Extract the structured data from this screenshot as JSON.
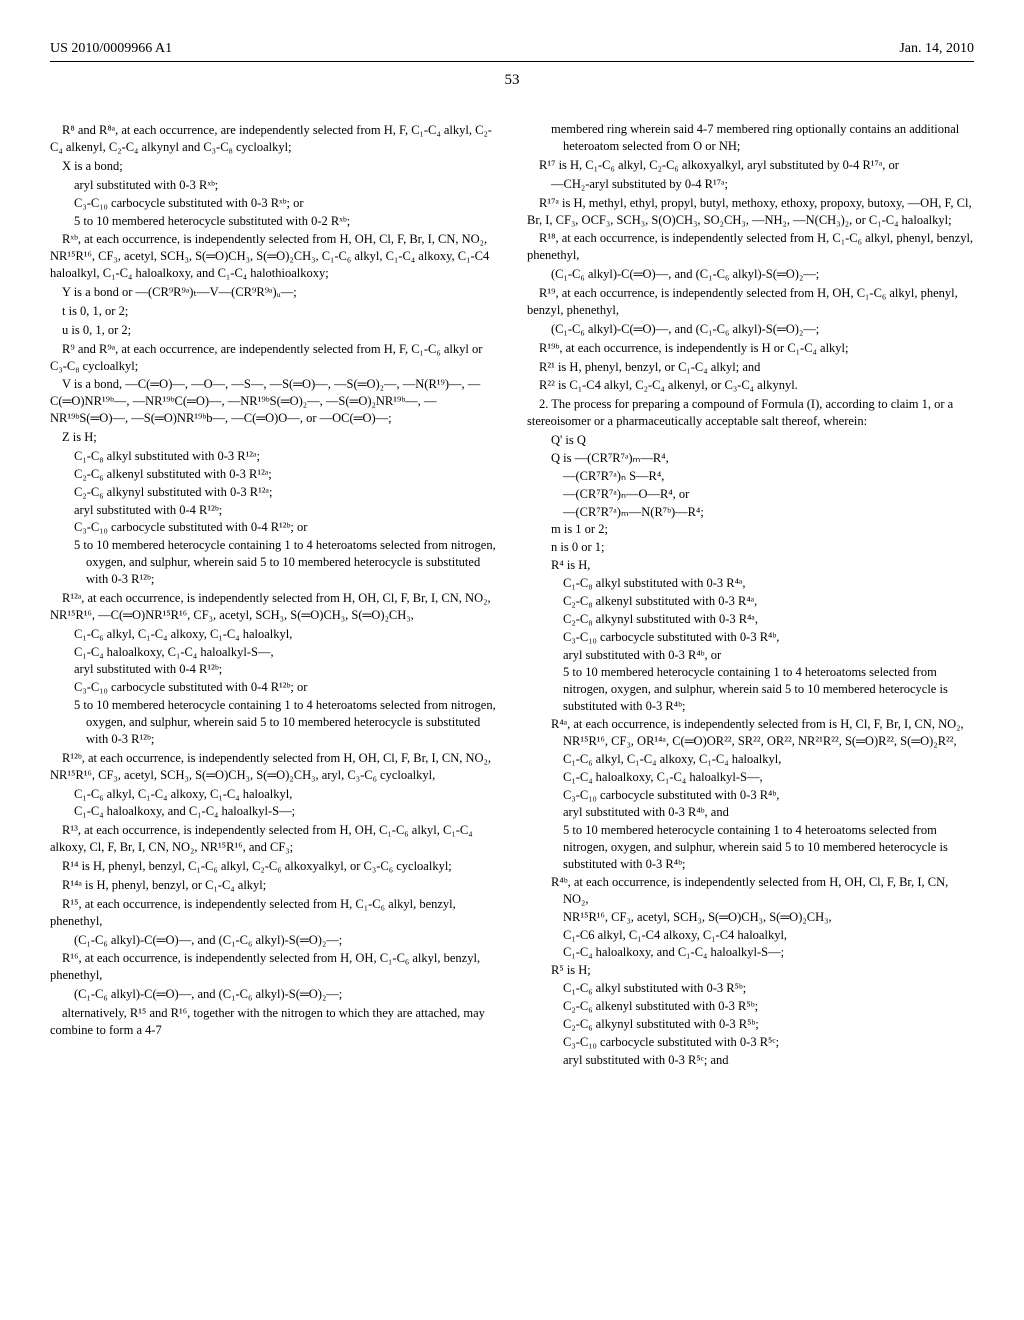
{
  "header": {
    "pub_number": "US 2010/0009966 A1",
    "date": "Jan. 14, 2010"
  },
  "page_number": "53",
  "left_column": {
    "r8_intro": "R⁸ and R⁸ᵃ, at each occurrence, are independently selected from H, F, C₁-C₄ alkyl, C₂-C₄ alkenyl, C₂-C₄ alkynyl and C₃-C₈ cycloalkyl;",
    "x_intro": "X is a bond;",
    "x_items": [
      "aryl substituted with 0-3 Rˣᵇ;",
      "C₃-C₁₀ carbocycle substituted with 0-3 Rˣᵇ; or",
      "5 to 10 membered heterocycle substituted with 0-2 Rˣᵇ;"
    ],
    "rxb": "Rˣᵇ, at each occurrence, is independently selected from H, OH, Cl, F, Br, I, CN, NO₂, NR¹⁵R¹⁶, CF₃, acetyl, SCH₃, S(═O)CH₃, S(═O)₂CH₃, C₁-C₆ alkyl, C₁-C₄ alkoxy, C₁-C4 haloalkyl, C₁-C₄ haloalkoxy, and C₁-C₄ halothioalkoxy;",
    "y_def": "Y is a bond or —(CR⁹R⁹ᵃ)ₜ—V—(CR⁹R⁹ᵃ)ᵤ—;",
    "t_def": "t is 0, 1, or 2;",
    "u_def": "u is 0, 1, or 2;",
    "r9_def": "R⁹ and R⁹ᵃ, at each occurrence, are independently selected from H, F, C₁-C₆ alkyl or C₃-C₈ cycloalkyl;",
    "v_def": "V is a bond, —C(═O)—, —O—, —S—, —S(═O)—, —S(═O)₂—, —N(R¹⁹)—, —C(═O)NR¹⁹ᵇ—, —NR¹⁹ᵇC(═O)—, —NR¹⁹ᵇS(═O)₂—, —S(═O)₂NR¹⁹ᵇ—, —NR¹⁹ᵇS(═O)—, —S(═O)NR¹⁹ᵇb—, —C(═O)O—, or —OC(═O)—;",
    "z_intro": "Z is H;",
    "z_items": [
      "C₁-C₈ alkyl substituted with 0-3 R¹²ᵃ;",
      "C₂-C₆ alkenyl substituted with 0-3 R¹²ᵃ;",
      "C₂-C₆ alkynyl substituted with 0-3 R¹²ᵃ;",
      "aryl substituted with 0-4 R¹²ᵇ;",
      "C₃-C₁₀ carbocycle substituted with 0-4 R¹²ᵇ; or",
      "5 to 10 membered heterocycle containing 1 to 4 heteroatoms selected from nitrogen, oxygen, and sulphur, wherein said 5 to 10 membered heterocycle is substituted with 0-3 R¹²ᵇ;"
    ],
    "r12a_intro": "R¹²ᵃ, at each occurrence, is independently selected from H, OH, Cl, F, Br, I, CN, NO₂, NR¹⁵R¹⁶, —C(═O)NR¹⁵R¹⁶, CF₃, acetyl, SCH₃, S(═O)CH₃, S(═O)₂CH₃,",
    "r12a_items": [
      "C₁-C₆ alkyl, C₁-C₄ alkoxy, C₁-C₄ haloalkyl,",
      "C₁-C₄ haloalkoxy, C₁-C₄ haloalkyl-S—,",
      "aryl substituted with 0-4 R¹²ᵇ;",
      "C₃-C₁₀ carbocycle substituted with 0-4 R¹²ᵇ; or",
      "5 to 10 membered heterocycle containing 1 to 4 heteroatoms selected from nitrogen, oxygen, and sulphur, wherein said 5 to 10 membered heterocycle is substituted with 0-3 R¹²ᵇ;"
    ],
    "r12b_intro": "R¹²ᵇ, at each occurrence, is independently selected from H, OH, Cl, F, Br, I, CN, NO₂, NR¹⁵R¹⁶, CF₃, acetyl, SCH₃, S(═O)CH₃, S(═O)₂CH₃, aryl, C₃-C₆ cycloalkyl,",
    "r12b_items": [
      "C₁-C₆ alkyl, C₁-C₄ alkoxy, C₁-C₄ haloalkyl,",
      "C₁-C₄ haloalkoxy, and C₁-C₄ haloalkyl-S—;"
    ],
    "r13": "R¹³, at each occurrence, is independently selected from H, OH, C₁-C₆ alkyl, C₁-C₄ alkoxy, Cl, F, Br, I, CN, NO₂, NR¹⁵R¹⁶, and CF₃;",
    "r14": "R¹⁴ is H, phenyl, benzyl, C₁-C₆ alkyl, C₂-C₆ alkoxyalkyl, or C₃-C₆ cycloalkyl;",
    "r14a": "R¹⁴ᵃ is H, phenyl, benzyl, or C₁-C₄ alkyl;",
    "r15": "R¹⁵, at each occurrence, is independently selected from H, C₁-C₆ alkyl, benzyl, phenethyl,",
    "r15_sub": "(C₁-C₆ alkyl)-C(═O)—, and (C₁-C₆ alkyl)-S(═O)₂—;",
    "r16": "R¹⁶, at each occurrence, is independently selected from H, OH, C₁-C₆ alkyl, benzyl, phenethyl,",
    "r16_sub": "(C₁-C₆ alkyl)-C(═O)—, and (C₁-C₆ alkyl)-S(═O)₂—;",
    "alt": "alternatively, R¹⁵ and R¹⁶, together with the nitrogen to which they are attached, may combine to form a 4-7"
  },
  "right_column": {
    "cont": "membered ring wherein said 4-7 membered ring optionally contains an additional heteroatom selected from O or NH;",
    "r17": "R¹⁷ is H, C₁-C₆ alkyl, C₂-C₆ alkoxyalkyl, aryl substituted by 0-4 R¹⁷ᵃ, or",
    "r17_sub": "—CH₂-aryl substituted by 0-4 R¹⁷ᵃ;",
    "r17a": "R¹⁷ᵃ is H, methyl, ethyl, propyl, butyl, methoxy, ethoxy, propoxy, butoxy, —OH, F, Cl, Br, I, CF₃, OCF₃, SCH₃, S(O)CH₃, SO₂CH₃, —NH₂, —N(CH₃)₂, or C₁-C₄ haloalkyl;",
    "r18": "R¹⁸, at each occurrence, is independently selected from H, C₁-C₆ alkyl, phenyl, benzyl, phenethyl,",
    "r18_sub": "(C₁-C₆ alkyl)-C(═O)—, and (C₁-C₆ alkyl)-S(═O)₂—;",
    "r19": "R¹⁹, at each occurrence, is independently selected from H, OH, C₁-C₆ alkyl, phenyl, benzyl, phenethyl,",
    "r19_sub": "(C₁-C₆ alkyl)-C(═O)—, and (C₁-C₆ alkyl)-S(═O)₂—;",
    "r19b": "R¹⁹ᵇ, at each occurrence, is independently is H or C₁-C₄ alkyl;",
    "r21": "R²¹ is H, phenyl, benzyl, or C₁-C₄ alkyl; and",
    "r22": "R²² is C₁-C4 alkyl, C₂-C₄ alkenyl, or C₃-C₄ alkynyl.",
    "claim2_intro": "2. The process for preparing a compound of Formula (I), according to claim 1, or a stereoisomer or a pharmaceutically acceptable salt thereof, wherein:",
    "qprime": "Q' is Q",
    "q_def": "Q is —(CR⁷R⁷ᵃ)ₘ—R⁴,",
    "q_items": [
      "—(CR⁷R⁷ᵃ)ₙ S—R⁴,",
      "—(CR⁷R⁷ᵃ)ₙ—O—R⁴, or",
      "—(CR⁷R⁷ᵃ)ₘ—N(R⁷ᵇ)—R⁴;"
    ],
    "m_def": "m is 1 or 2;",
    "n_def": "n is 0 or 1;",
    "r4_intro": "R⁴ is H,",
    "r4_items": [
      "C₁-C₈ alkyl substituted with 0-3 R⁴ᵃ,",
      "C₂-C₈ alkenyl substituted with 0-3 R⁴ᵃ,",
      "C₂-C₈ alkynyl substituted with 0-3 R⁴ᵃ,",
      "C₃-C₁₀ carbocycle substituted with 0-3 R⁴ᵇ,",
      "aryl substituted with 0-3 R⁴ᵇ, or",
      "5 to 10 membered heterocycle containing 1 to 4 heteroatoms selected from nitrogen, oxygen, and sulphur, wherein said 5 to 10 membered heterocycle is substituted with 0-3 R⁴ᵇ;"
    ],
    "r4a_intro": "R⁴ᵃ, at each occurrence, is independently selected from is H, Cl, F, Br, I, CN, NO₂, NR¹⁵R¹⁶, CF₃, OR¹⁴ᵃ, C(═O)OR²², SR²², OR²², NR²¹R²², S(═O)R²², S(═O)₂R²²,",
    "r4a_items": [
      "C₁-C₆ alkyl, C₁-C₄ alkoxy, C₁-C₄ haloalkyl,",
      "C₁-C₄ haloalkoxy, C₁-C₄ haloalkyl-S—,",
      "C₃-C₁₀ carbocycle substituted with 0-3 R⁴ᵇ,",
      "aryl substituted with 0-3 R⁴ᵇ, and",
      "5 to 10 membered heterocycle containing 1 to 4 heteroatoms selected from nitrogen, oxygen, and sulphur, wherein said 5 to 10 membered heterocycle is substituted with 0-3 R⁴ᵇ;"
    ],
    "r4b_intro": "R⁴ᵇ, at each occurrence, is independently selected from H, OH, Cl, F, Br, I, CN, NO₂,",
    "r4b_items": [
      "NR¹⁵R¹⁶, CF₃, acetyl, SCH₃, S(═O)CH₃, S(═O)₂CH₃,",
      "C₁-C6 alkyl, C₁-C4 alkoxy, C₁-C4 haloalkyl,",
      "C₁-C₄ haloalkoxy, and C₁-C₄ haloalkyl-S—;"
    ],
    "r5_intro": "R⁵ is H;",
    "r5_items": [
      "C₁-C₆ alkyl substituted with 0-3 R⁵ᵇ;",
      "C₂-C₆ alkenyl substituted with 0-3 R⁵ᵇ;",
      "C₂-C₆ alkynyl substituted with 0-3 R⁵ᵇ;",
      "C₃-C₁₀ carbocycle substituted with 0-3 R⁵ᶜ;",
      "aryl substituted with 0-3 R⁵ᶜ; and"
    ]
  }
}
